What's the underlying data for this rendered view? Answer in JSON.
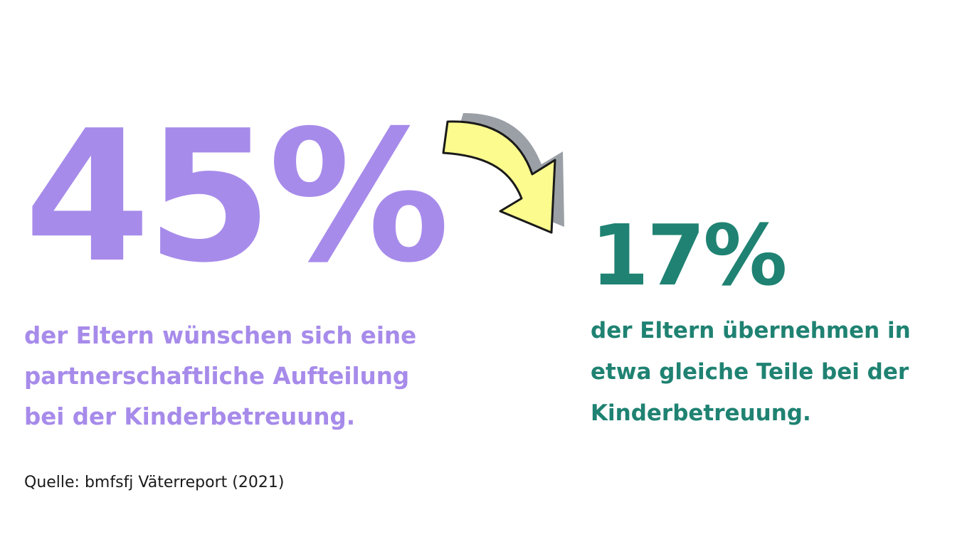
{
  "colors": {
    "purple": "#a78bea",
    "green": "#1f8272",
    "arrow_fill": "#fbfb8e",
    "arrow_shadow": "#9aa0a6"
  },
  "left_stat": {
    "value": "45%",
    "description_lines": [
      "der Eltern wünschen sich eine",
      "partnerschaftliche Aufteilung",
      "bei der Kinderbetreuung."
    ]
  },
  "right_stat": {
    "value": "17%",
    "description_lines": [
      "der Eltern übernehmen in",
      "etwa gleiche Teile bei der",
      "Kinderbetreuung."
    ]
  },
  "arrow_icon": "curved-arrow-icon",
  "source": "Quelle: bmfsfj Väterreport (2021)"
}
